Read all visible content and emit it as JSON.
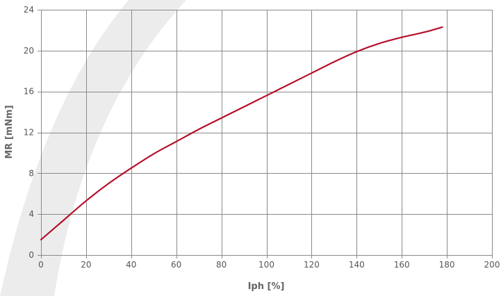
{
  "chart_data": {
    "type": "line",
    "title": "",
    "xlabel": "Iph [%]",
    "ylabel": "MR [mNm]",
    "xlim": [
      0,
      200
    ],
    "ylim": [
      0,
      24
    ],
    "xticks": [
      0,
      20,
      40,
      60,
      80,
      100,
      120,
      140,
      160,
      180,
      200
    ],
    "yticks": [
      0,
      4,
      8,
      12,
      16,
      20,
      24
    ],
    "grid": true,
    "legend": "none",
    "series": [
      {
        "color": "#b5102b",
        "x": [
          0,
          10,
          20,
          30,
          40,
          50,
          60,
          70,
          80,
          90,
          100,
          110,
          120,
          130,
          140,
          150,
          160,
          170,
          178
        ],
        "y": [
          1.5,
          3.4,
          5.3,
          7.0,
          8.5,
          9.9,
          11.1,
          12.3,
          13.4,
          14.5,
          15.6,
          16.7,
          17.8,
          18.9,
          19.9,
          20.7,
          21.3,
          21.8,
          22.3
        ]
      }
    ]
  }
}
